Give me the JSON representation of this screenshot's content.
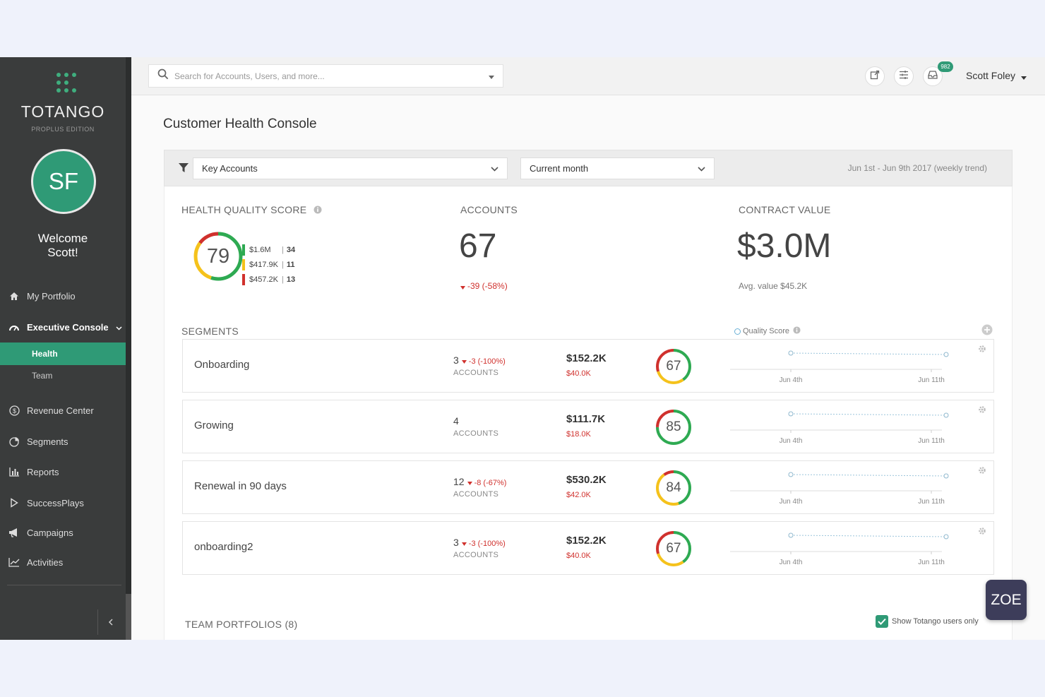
{
  "sidebar": {
    "brand": "TOTANGO",
    "edition": "PROPLUS EDITION",
    "avatar_initials": "SF",
    "welcome_line1": "Welcome",
    "welcome_line2": "Scott!",
    "nav": {
      "my_portfolio": "My Portfolio",
      "executive_console": "Executive Console",
      "health": "Health",
      "team": "Team",
      "revenue_center": "Revenue Center",
      "segments": "Segments",
      "reports": "Reports",
      "successplays": "SuccessPlays",
      "campaigns": "Campaigns",
      "activities": "Activities"
    },
    "collapse_icon": "chevron-left-icon"
  },
  "topbar": {
    "search_placeholder": "Search for Accounts, Users, and more...",
    "notification_count": "982",
    "user_name": "Scott Foley"
  },
  "main": {
    "page_title": "Customer Health Console",
    "filters": {
      "segment": "Key Accounts",
      "period": "Current month",
      "date_range": "Jun 1st - Jun 9th 2017 (weekly trend)"
    },
    "kpis": {
      "health_label": "HEALTH QUALITY SCORE",
      "health_score": "79",
      "health_legend": [
        {
          "value": "$1.6M",
          "count": "34",
          "color": "#2eaa52"
        },
        {
          "value": "$417.9K",
          "count": "11",
          "color": "#f5c21b"
        },
        {
          "value": "$457.2K",
          "count": "13",
          "color": "#d0312d"
        }
      ],
      "health_gauge": {
        "green": 0.55,
        "yellow": 0.3,
        "red": 0.15
      },
      "accounts_label": "ACCOUNTS",
      "accounts_value": "67",
      "accounts_delta": "-39 (-58%)",
      "contract_label": "CONTRACT VALUE",
      "contract_value": "$3.0M",
      "contract_avg": "Avg. value $45.2K"
    },
    "segments_label": "SEGMENTS",
    "quality_score_legend": "Quality Score",
    "segments": [
      {
        "name": "Onboarding",
        "count": "3",
        "delta": "-3 (-100%)",
        "accounts_label": "ACCOUNTS",
        "value": "$152.2K",
        "sub_value": "$40.0K",
        "score": "67",
        "gauge": {
          "green": 0.4,
          "yellow": 0.3,
          "red": 0.3
        },
        "x_start": "Jun 4th",
        "x_end": "Jun 11th"
      },
      {
        "name": "Growing",
        "count": "4",
        "delta": "",
        "accounts_label": "ACCOUNTS",
        "value": "$111.7K",
        "sub_value": "$18.0K",
        "score": "85",
        "gauge": {
          "green": 0.75,
          "yellow": 0.0,
          "red": 0.25
        },
        "x_start": "Jun 4th",
        "x_end": "Jun 11th"
      },
      {
        "name": "Renewal in 90 days",
        "count": "12",
        "delta": "-8 (-67%)",
        "accounts_label": "ACCOUNTS",
        "value": "$530.2K",
        "sub_value": "$42.0K",
        "score": "84",
        "gauge": {
          "green": 0.45,
          "yellow": 0.45,
          "red": 0.1
        },
        "x_start": "Jun 4th",
        "x_end": "Jun 11th"
      },
      {
        "name": "onboarding2",
        "count": "3",
        "delta": "-3 (-100%)",
        "accounts_label": "ACCOUNTS",
        "value": "$152.2K",
        "sub_value": "$40.0K",
        "score": "67",
        "gauge": {
          "green": 0.4,
          "yellow": 0.3,
          "red": 0.3
        },
        "x_start": "Jun 4th",
        "x_end": "Jun 11th"
      }
    ],
    "team_portfolios_label": "TEAM PORTFOLIOS (8)",
    "show_totango_users": "Show Totango users only"
  },
  "zoe_label": "ZOE",
  "colors": {
    "accent": "#2f9a76",
    "green": "#2eaa52",
    "yellow": "#f5c21b",
    "red": "#d0312d",
    "sidebar": "#3a3c3c"
  }
}
